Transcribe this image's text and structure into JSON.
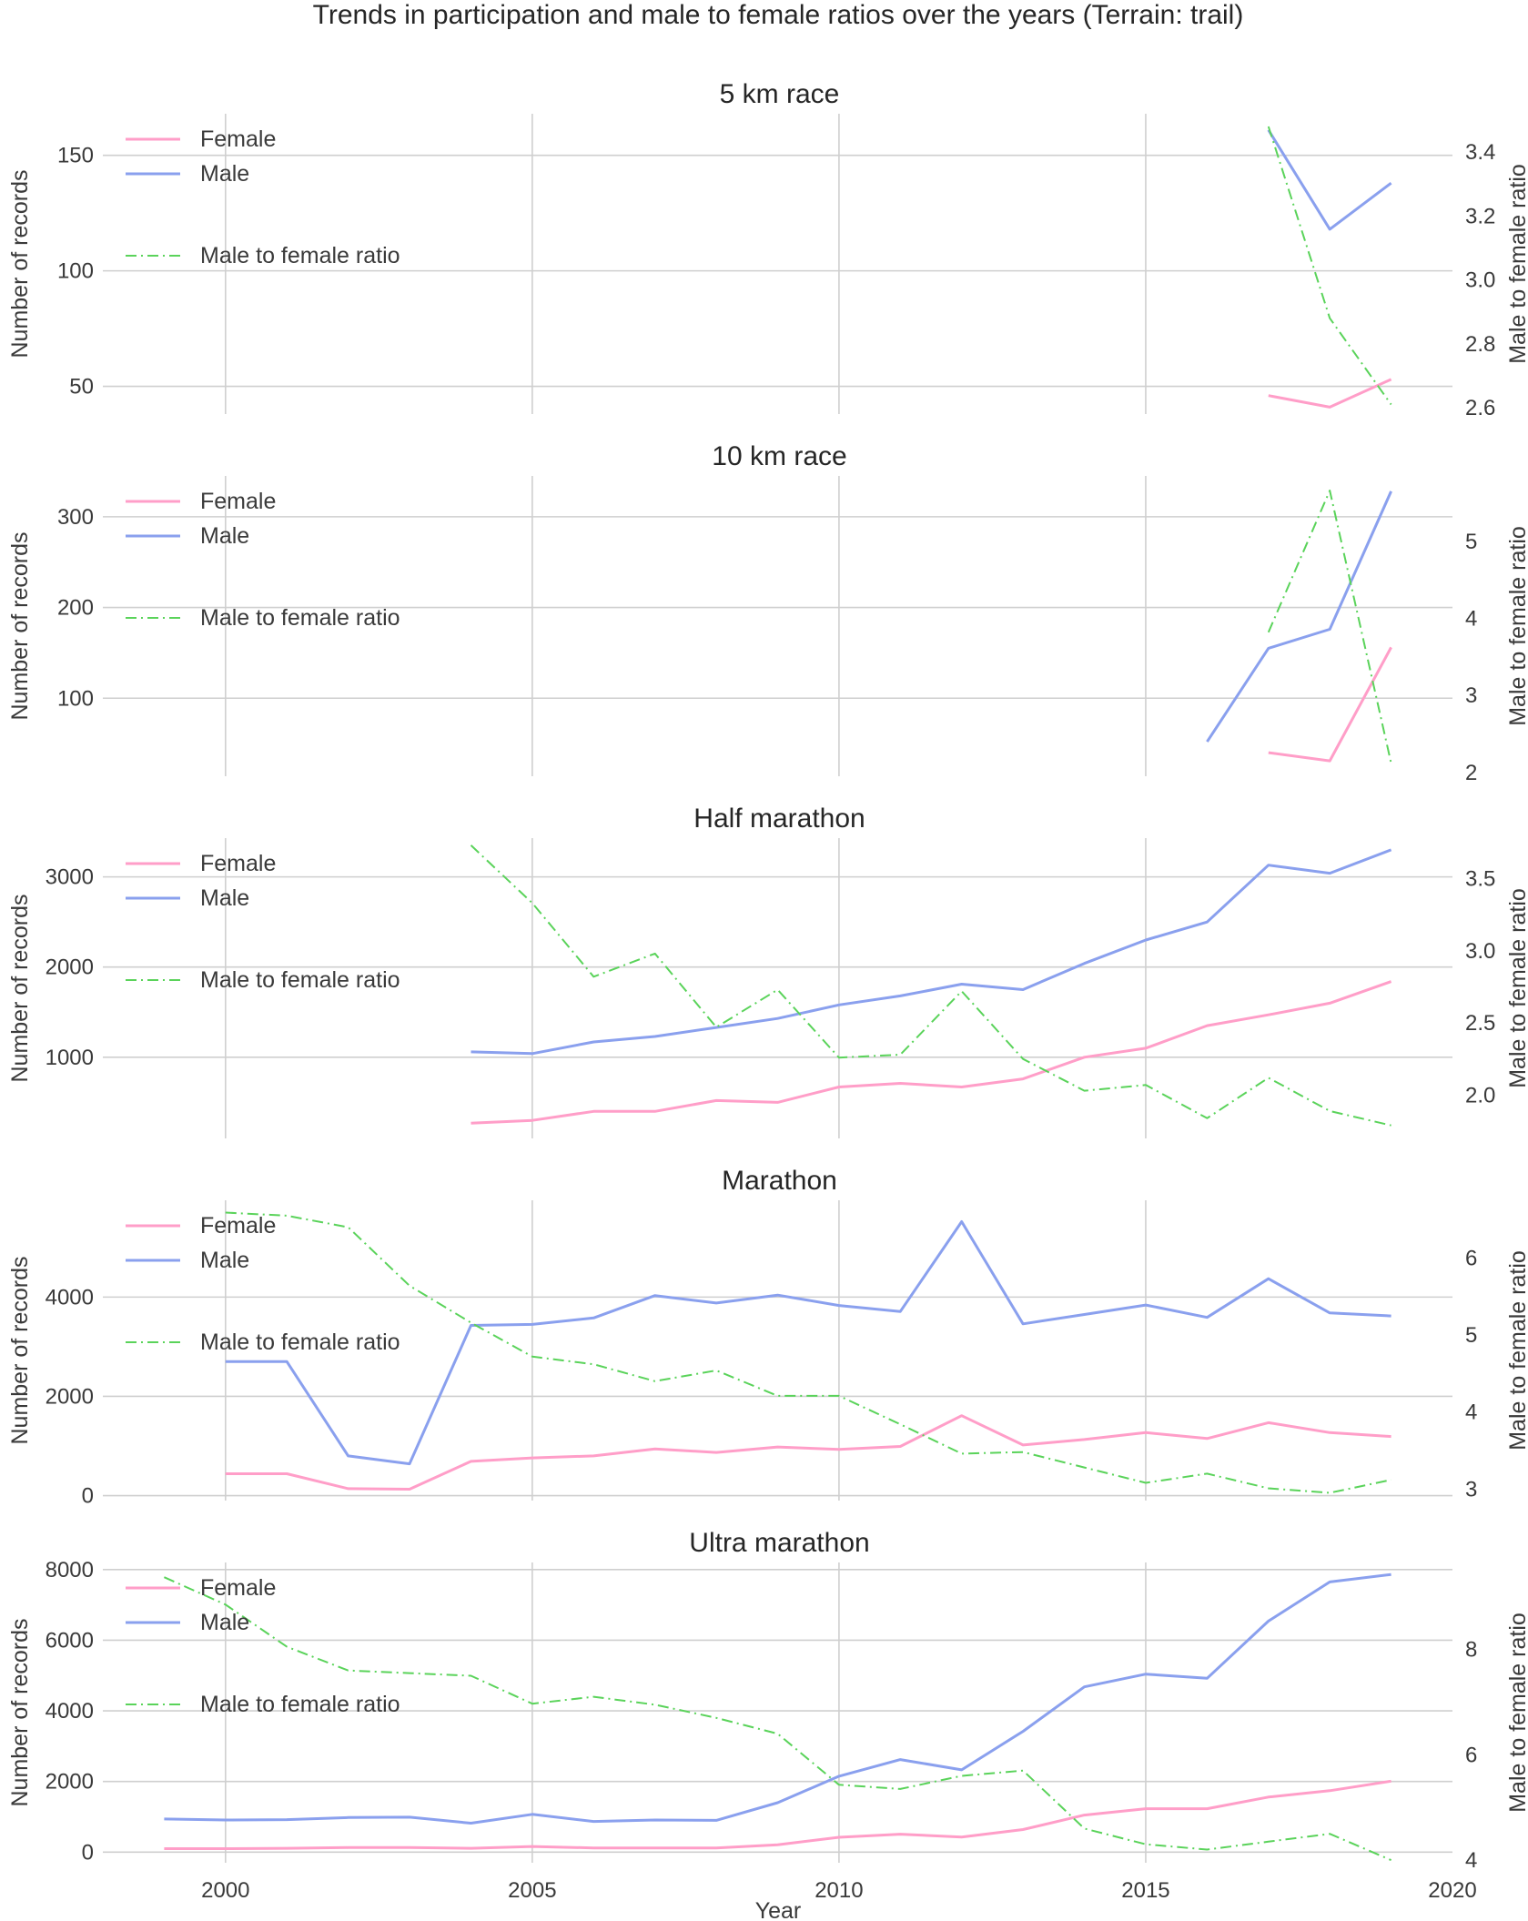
{
  "chart_data": {
    "type": "line",
    "title": "Trends in participation and male to female ratios over the years (Terrain: trail)",
    "xlabel": "Year",
    "xlim": [
      1998,
      2020
    ],
    "xticks": [
      2000,
      2005,
      2010,
      2015,
      2020
    ],
    "grid": true,
    "colors": {
      "female": "#ff9ec8",
      "male": "#8aa0ee",
      "ratio": "#5ad35a"
    },
    "legend": {
      "position": "top-left",
      "entries": [
        "Female",
        "Male",
        "Male to female ratio"
      ]
    },
    "panels": [
      {
        "title": "5 km race",
        "ylabel": "Number of records",
        "y2label": "Male to female ratio",
        "ylim": [
          38,
          168
        ],
        "yticks": [
          50,
          100,
          150
        ],
        "y2lim": [
          2.58,
          3.52
        ],
        "y2ticks": [
          "2.6",
          "2.8",
          "3.0",
          "3.2",
          "3.4"
        ],
        "series": [
          {
            "name": "Female",
            "axis": "left",
            "x": [
              2017,
              2018,
              2019
            ],
            "y": [
              46,
              41,
              53
            ]
          },
          {
            "name": "Male",
            "axis": "left",
            "x": [
              2017,
              2018,
              2019
            ],
            "y": [
              161,
              118,
              138
            ]
          },
          {
            "name": "Male to female ratio",
            "axis": "right",
            "x": [
              2017,
              2018,
              2019
            ],
            "y": [
              3.48,
              2.88,
              2.61
            ]
          }
        ]
      },
      {
        "title": "10 km race",
        "ylabel": "Number of records",
        "y2label": "Male to female ratio",
        "ylim": [
          14,
          345
        ],
        "yticks": [
          100,
          200,
          300
        ],
        "y2lim": [
          1.95,
          5.85
        ],
        "y2ticks": [
          "2",
          "3",
          "4",
          "5"
        ],
        "series": [
          {
            "name": "Female",
            "axis": "left",
            "x": [
              2017,
              2018,
              2019
            ],
            "y": [
              40,
              31,
              156
            ]
          },
          {
            "name": "Male",
            "axis": "left",
            "x": [
              2016,
              2017,
              2018,
              2019
            ],
            "y": [
              52,
              155,
              176,
              328
            ]
          },
          {
            "name": "Male to female ratio",
            "axis": "right",
            "x": [
              2017,
              2018,
              2019
            ],
            "y": [
              3.82,
              5.66,
              2.12
            ]
          }
        ]
      },
      {
        "title": "Half marathon",
        "ylabel": "Number of records",
        "y2label": "Male to female ratio",
        "ylim": [
          100,
          3430
        ],
        "yticks": [
          1000,
          2000,
          3000
        ],
        "y2lim": [
          1.7,
          3.78
        ],
        "y2ticks": [
          "2.0",
          "2.5",
          "3.0",
          "3.5"
        ],
        "series": [
          {
            "name": "Female",
            "axis": "left",
            "x": [
              2004,
              2005,
              2006,
              2007,
              2008,
              2009,
              2010,
              2011,
              2012,
              2013,
              2014,
              2015,
              2016,
              2017,
              2018,
              2019
            ],
            "y": [
              270,
              300,
              400,
              400,
              520,
              500,
              670,
              710,
              670,
              760,
              1000,
              1100,
              1350,
              1470,
              1600,
              1840
            ]
          },
          {
            "name": "Male",
            "axis": "left",
            "x": [
              2004,
              2005,
              2006,
              2007,
              2008,
              2009,
              2010,
              2011,
              2012,
              2013,
              2014,
              2015,
              2016,
              2017,
              2018,
              2019
            ],
            "y": [
              1060,
              1040,
              1170,
              1230,
              1330,
              1430,
              1580,
              1680,
              1810,
              1750,
              2040,
              2300,
              2500,
              3130,
              3040,
              3300
            ]
          },
          {
            "name": "Male to female ratio",
            "axis": "right",
            "x": [
              2004,
              2005,
              2006,
              2007,
              2008,
              2009,
              2010,
              2011,
              2012,
              2013,
              2014,
              2015,
              2016,
              2017,
              2018,
              2019
            ],
            "y": [
              3.73,
              3.33,
              2.82,
              2.98,
              2.47,
              2.73,
              2.26,
              2.28,
              2.72,
              2.25,
              2.03,
              2.07,
              1.84,
              2.12,
              1.89,
              1.79
            ]
          }
        ]
      },
      {
        "title": "Marathon",
        "ylabel": "Number of records",
        "y2label": "Male to female ratio",
        "ylim": [
          -100,
          5950
        ],
        "yticks": [
          0,
          2000,
          4000
        ],
        "y2lim": [
          2.85,
          6.75
        ],
        "y2ticks": [
          "3",
          "4",
          "5",
          "6"
        ],
        "series": [
          {
            "name": "Female",
            "axis": "left",
            "x": [
              2000,
              2001,
              2002,
              2003,
              2004,
              2005,
              2006,
              2007,
              2008,
              2009,
              2010,
              2011,
              2012,
              2013,
              2014,
              2015,
              2016,
              2017,
              2018,
              2019
            ],
            "y": [
              440,
              440,
              140,
              130,
              690,
              760,
              800,
              940,
              870,
              980,
              930,
              990,
              1610,
              1020,
              1130,
              1270,
              1150,
              1470,
              1270,
              1190
            ]
          },
          {
            "name": "Male",
            "axis": "left",
            "x": [
              2000,
              2001,
              2002,
              2003,
              2004,
              2005,
              2006,
              2007,
              2008,
              2009,
              2010,
              2011,
              2012,
              2013,
              2014,
              2015,
              2016,
              2017,
              2018,
              2019
            ],
            "y": [
              2700,
              2700,
              800,
              640,
              3430,
              3450,
              3580,
              4030,
              3880,
              4040,
              3830,
              3710,
              5520,
              3460,
              3650,
              3840,
              3590,
              4370,
              3680,
              3620
            ]
          },
          {
            "name": "Male to female ratio",
            "axis": "right",
            "x": [
              2000,
              2001,
              2002,
              2003,
              2004,
              2005,
              2006,
              2007,
              2008,
              2009,
              2010,
              2011,
              2012,
              2013,
              2014,
              2015,
              2016,
              2017,
              2018,
              2019
            ],
            "y": [
              6.59,
              6.55,
              6.4,
              5.64,
              5.16,
              4.72,
              4.62,
              4.4,
              4.54,
              4.21,
              4.21,
              3.84,
              3.46,
              3.48,
              3.28,
              3.08,
              3.2,
              3.01,
              2.95,
              3.12
            ]
          }
        ]
      },
      {
        "title": "Ultra marathon",
        "ylabel": "Number of records",
        "y2label": "Male to female ratio",
        "ylim": [
          -300,
          8200
        ],
        "yticks": [
          0,
          2000,
          4000,
          6000,
          8000
        ],
        "y2lim": [
          3.95,
          9.65
        ],
        "y2ticks": [
          "4",
          "6",
          "8"
        ],
        "series": [
          {
            "name": "Female",
            "axis": "left",
            "x": [
              1999,
              2000,
              2001,
              2002,
              2003,
              2004,
              2005,
              2006,
              2007,
              2008,
              2009,
              2010,
              2011,
              2012,
              2013,
              2014,
              2015,
              2016,
              2017,
              2018,
              2019
            ],
            "y": [
              100,
              100,
              110,
              130,
              130,
              110,
              160,
              120,
              120,
              120,
              210,
              420,
              510,
              430,
              640,
              1050,
              1230,
              1230,
              1560,
              1740,
              2010
            ]
          },
          {
            "name": "Male",
            "axis": "left",
            "x": [
              1999,
              2000,
              2001,
              2002,
              2003,
              2004,
              2005,
              2006,
              2007,
              2008,
              2009,
              2010,
              2011,
              2012,
              2013,
              2014,
              2015,
              2016,
              2017,
              2018,
              2019
            ],
            "y": [
              940,
              910,
              920,
              980,
              990,
              820,
              1070,
              870,
              910,
              900,
              1400,
              2150,
              2620,
              2330,
              3420,
              4680,
              5040,
              4920,
              6540,
              7650,
              7860
            ]
          },
          {
            "name": "Male to female ratio",
            "axis": "right",
            "x": [
              1999,
              2000,
              2001,
              2002,
              2003,
              2004,
              2005,
              2006,
              2007,
              2008,
              2009,
              2010,
              2011,
              2012,
              2013,
              2014,
              2015,
              2016,
              2017,
              2018,
              2019
            ],
            "y": [
              9.37,
              8.85,
              8.05,
              7.6,
              7.55,
              7.5,
              6.97,
              7.1,
              6.95,
              6.7,
              6.4,
              5.43,
              5.35,
              5.6,
              5.7,
              4.6,
              4.3,
              4.2,
              4.35,
              4.5,
              4.0
            ]
          }
        ]
      }
    ]
  }
}
